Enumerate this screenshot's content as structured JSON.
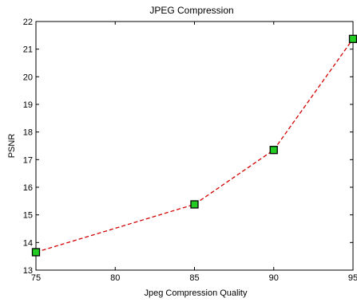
{
  "chart_data": {
    "type": "line",
    "title": "JPEG Compression",
    "xlabel": "Jpeg Compression Quality",
    "ylabel": "PSNR",
    "xlim": [
      75,
      95
    ],
    "ylim": [
      13,
      22
    ],
    "xticks": [
      "75",
      "80",
      "85",
      "90",
      "95"
    ],
    "yticks": [
      "13",
      "14",
      "15",
      "16",
      "17",
      "18",
      "19",
      "20",
      "21",
      "22"
    ],
    "grid": false,
    "series": [
      {
        "x": [
          75,
          85,
          90,
          95
        ],
        "y": [
          13.65,
          15.38,
          17.35,
          21.37
        ],
        "line_color": "#d40000",
        "line_style": "dashed",
        "marker": "square",
        "marker_fill": "#22cc22",
        "marker_edge": "#000000"
      }
    ]
  }
}
